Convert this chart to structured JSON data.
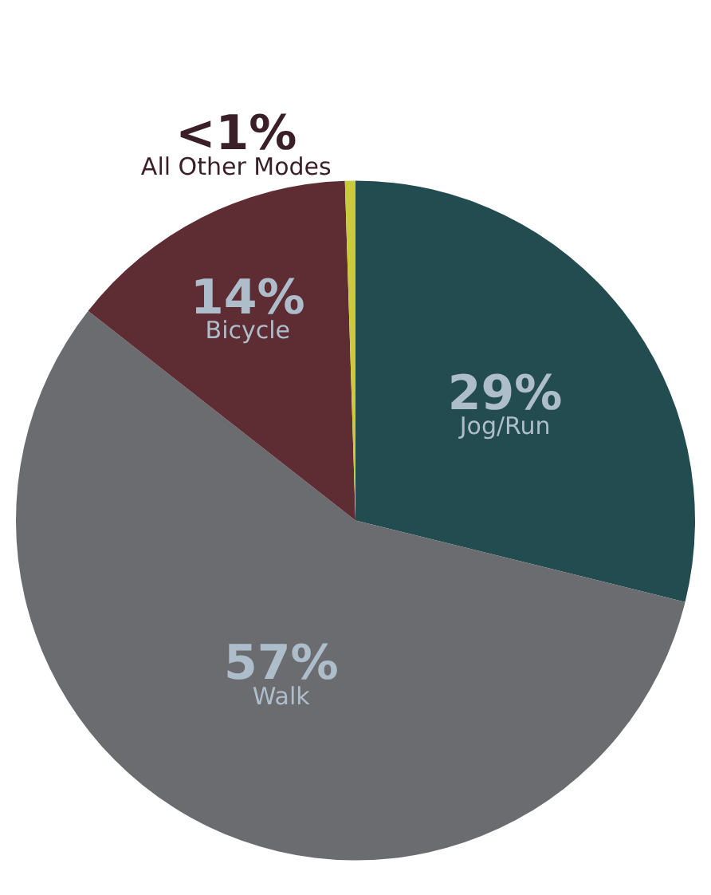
{
  "chart_data": {
    "type": "pie",
    "categories": [
      "Jog/Run",
      "Walk",
      "Bicycle",
      "All Other Modes"
    ],
    "values": [
      29,
      57,
      14,
      0.5
    ],
    "value_labels": [
      "29%",
      "57%",
      "14%",
      "<1%"
    ],
    "colors": [
      "#234c50",
      "#6b6c70",
      "#5e2c33",
      "#c8cc3a"
    ],
    "legend": false
  }
}
